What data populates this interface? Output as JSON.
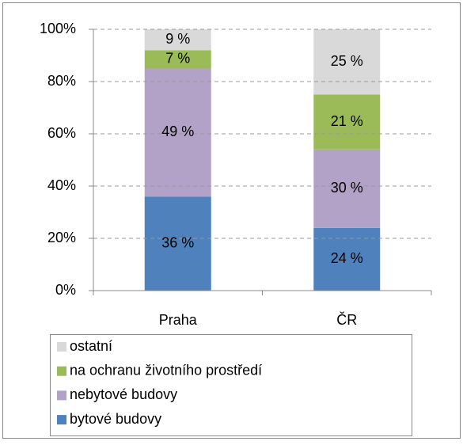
{
  "chart_data": {
    "type": "stacked_bar",
    "categories": [
      "Praha",
      "ČR"
    ],
    "series": [
      {
        "name": "bytové budovy",
        "color": "#4f81bd",
        "values": [
          36,
          24
        ],
        "value_labels": [
          "36 %",
          "24 %"
        ]
      },
      {
        "name": "nebytové budovy",
        "color": "#b3a2c7",
        "values": [
          49,
          30
        ],
        "value_labels": [
          "49 %",
          "30 %"
        ]
      },
      {
        "name": "na ochranu životního prostředí",
        "color": "#9bbb59",
        "values": [
          7,
          21
        ],
        "value_labels": [
          "7 %",
          "21 %"
        ]
      },
      {
        "name": "ostatní",
        "color": "#d9d9d9",
        "values": [
          9,
          25
        ],
        "value_labels": [
          "9 %",
          "25 %"
        ]
      }
    ],
    "ylim": [
      0,
      100
    ],
    "yticks": [
      {
        "value": 0,
        "label": "0%"
      },
      {
        "value": 20,
        "label": "20%"
      },
      {
        "value": 40,
        "label": "40%"
      },
      {
        "value": 60,
        "label": "60%"
      },
      {
        "value": 80,
        "label": "80%"
      },
      {
        "value": 100,
        "label": "100%"
      }
    ],
    "grid": true,
    "legend": "bottom"
  }
}
